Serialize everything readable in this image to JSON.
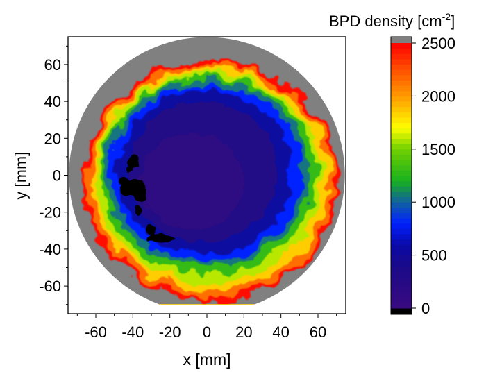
{
  "chart_data": {
    "type": "heatmap",
    "title": "",
    "xlabel": "x [mm]",
    "ylabel": "y [mm]",
    "xlim": [
      -75,
      75
    ],
    "ylim": [
      -75,
      75
    ],
    "xticks": [
      -60,
      -40,
      -20,
      0,
      20,
      40,
      60
    ],
    "yticks": [
      -60,
      -40,
      -20,
      0,
      20,
      40,
      60
    ],
    "minor_tick_step": 10,
    "grid": false,
    "wafer_radius_mm": 74.5,
    "wafer_flat_y_mm": -70,
    "colorbar": {
      "label_prefix": "BPD density [cm",
      "label_superscript": "-2",
      "label_suffix": "]",
      "range": [
        0,
        2500
      ],
      "ticks": [
        0,
        500,
        1000,
        1500,
        2000,
        2500
      ],
      "over_color": "#808080",
      "under_color": "#000000",
      "stops": [
        {
          "value": 0,
          "color": "#3a0a80"
        },
        {
          "value": 400,
          "color": "#1a0a88"
        },
        {
          "value": 600,
          "color": "#0a0aa8"
        },
        {
          "value": 800,
          "color": "#0020ff"
        },
        {
          "value": 1000,
          "color": "#1060a0"
        },
        {
          "value": 1200,
          "color": "#18b020"
        },
        {
          "value": 1500,
          "color": "#70d000"
        },
        {
          "value": 1700,
          "color": "#ffff00"
        },
        {
          "value": 2000,
          "color": "#ff9a00"
        },
        {
          "value": 2250,
          "color": "#ff5000"
        },
        {
          "value": 2500,
          "color": "#ff0000"
        }
      ]
    },
    "legend": "right"
  }
}
